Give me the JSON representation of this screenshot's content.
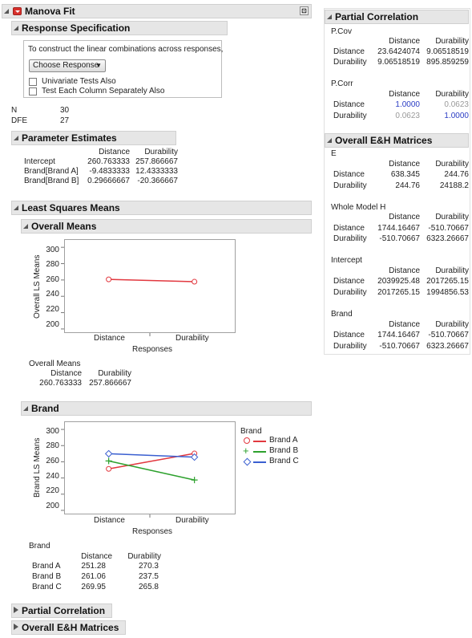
{
  "manova": {
    "title": "Manova Fit",
    "response_spec": {
      "title": "Response Specification",
      "instruction": "To construct the linear combinations across responses,",
      "choose_label": "Choose Response",
      "univariate_label": "Univariate Tests Also",
      "each_column_label": "Test Each Column Separately Also"
    },
    "stats": {
      "n_label": "N",
      "n_value": "30",
      "dfe_label": "DFE",
      "dfe_value": "27"
    },
    "param_est": {
      "title": "Parameter Estimates",
      "col1": "Distance",
      "col2": "Durability",
      "rows": [
        {
          "label": "Intercept",
          "v1": "260.763333",
          "v2": "257.866667"
        },
        {
          "label": "Brand[Brand A]",
          "v1": "-9.4833333",
          "v2": "12.4333333"
        },
        {
          "label": "Brand[Brand B]",
          "v1": "0.29666667",
          "v2": "-20.366667"
        }
      ]
    },
    "lsm": {
      "title": "Least Squares Means",
      "overall": {
        "title": "Overall Means",
        "ylabel": "Overall  LS Means",
        "xlabel": "Responses",
        "yticks": [
          "300",
          "280",
          "260",
          "240",
          "220",
          "200"
        ],
        "xticks": [
          "Distance",
          "Durability"
        ],
        "table_title": "Overall Means",
        "col1": "Distance",
        "col2": "Durability",
        "v1": "260.763333",
        "v2": "257.866667"
      },
      "brand": {
        "title": "Brand",
        "ylabel": "Brand  LS Means",
        "xlabel": "Responses",
        "yticks": [
          "300",
          "280",
          "260",
          "240",
          "220",
          "200"
        ],
        "xticks": [
          "Distance",
          "Durability"
        ],
        "legend_title": "Brand",
        "legend": [
          {
            "name": "Brand A",
            "color": "#e2383f",
            "marker": "○"
          },
          {
            "name": "Brand B",
            "color": "#2da12d",
            "marker": "+"
          },
          {
            "name": "Brand C",
            "color": "#3a5fd0",
            "marker": "◇"
          }
        ],
        "table_title": "Brand",
        "col1": "Distance",
        "col2": "Durability",
        "rows": [
          {
            "label": "Brand A",
            "v1": "251.28",
            "v2": "270.3"
          },
          {
            "label": "Brand B",
            "v1": "261.06",
            "v2": "237.5"
          },
          {
            "label": "Brand C",
            "v1": "269.95",
            "v2": "265.8"
          }
        ]
      }
    },
    "bottom": {
      "partial": "Partial Correlation",
      "overall_eh": "Overall E&H Matrices"
    }
  },
  "partial_corr": {
    "title": "Partial Correlation",
    "pcov_label": "P.Cov",
    "pcov": {
      "col1": "Distance",
      "col2": "Durability",
      "rows": [
        {
          "label": "Distance",
          "v1": "23.6424074",
          "v2": "9.06518519"
        },
        {
          "label": "Durability",
          "v1": "9.06518519",
          "v2": "895.859259"
        }
      ]
    },
    "pcorr_label": "P.Corr",
    "pcorr": {
      "col1": "Distance",
      "col2": "Durability",
      "rows": [
        {
          "label": "Distance",
          "v1": "1.0000",
          "v2": "0.0623"
        },
        {
          "label": "Durability",
          "v1": "0.0623",
          "v2": "1.0000"
        }
      ]
    }
  },
  "eh": {
    "title": "Overall E&H Matrices",
    "blocks": [
      {
        "label": "E",
        "col1": "Distance",
        "col2": "Durability",
        "rows": [
          {
            "label": "Distance",
            "v1": "638.345",
            "v2": "244.76"
          },
          {
            "label": "Durability",
            "v1": "244.76",
            "v2": "24188.2"
          }
        ]
      },
      {
        "label": "Whole Model H",
        "col1": "Distance",
        "col2": "Durability",
        "rows": [
          {
            "label": "Distance",
            "v1": "1744.16467",
            "v2": "-510.70667"
          },
          {
            "label": "Durability",
            "v1": "-510.70667",
            "v2": "6323.26667"
          }
        ]
      },
      {
        "label": "Intercept",
        "col1": "Distance",
        "col2": "Durability",
        "rows": [
          {
            "label": "Distance",
            "v1": "2039925.48",
            "v2": "2017265.15"
          },
          {
            "label": "Durability",
            "v1": "2017265.15",
            "v2": "1994856.53"
          }
        ]
      },
      {
        "label": "Brand",
        "col1": "Distance",
        "col2": "Durability",
        "rows": [
          {
            "label": "Distance",
            "v1": "1744.16467",
            "v2": "-510.70667"
          },
          {
            "label": "Durability",
            "v1": "-510.70667",
            "v2": "6323.26667"
          }
        ]
      }
    ]
  },
  "chart_data": [
    {
      "type": "line",
      "title": "Overall Means",
      "xlabel": "Responses",
      "ylabel": "Overall  LS Means",
      "categories": [
        "Distance",
        "Durability"
      ],
      "ylim": [
        195,
        310
      ],
      "series": [
        {
          "color": "#e2383f",
          "values": [
            260.763333,
            257.866667
          ]
        }
      ]
    },
    {
      "type": "line",
      "title": "Brand",
      "xlabel": "Responses",
      "ylabel": "Brand  LS Means",
      "categories": [
        "Distance",
        "Durability"
      ],
      "ylim": [
        195,
        310
      ],
      "series": [
        {
          "name": "Brand A",
          "color": "#e2383f",
          "values": [
            251.28,
            270.3
          ]
        },
        {
          "name": "Brand B",
          "color": "#2da12d",
          "values": [
            261.06,
            237.5
          ]
        },
        {
          "name": "Brand C",
          "color": "#3a5fd0",
          "values": [
            269.95,
            265.8
          ]
        }
      ]
    }
  ]
}
